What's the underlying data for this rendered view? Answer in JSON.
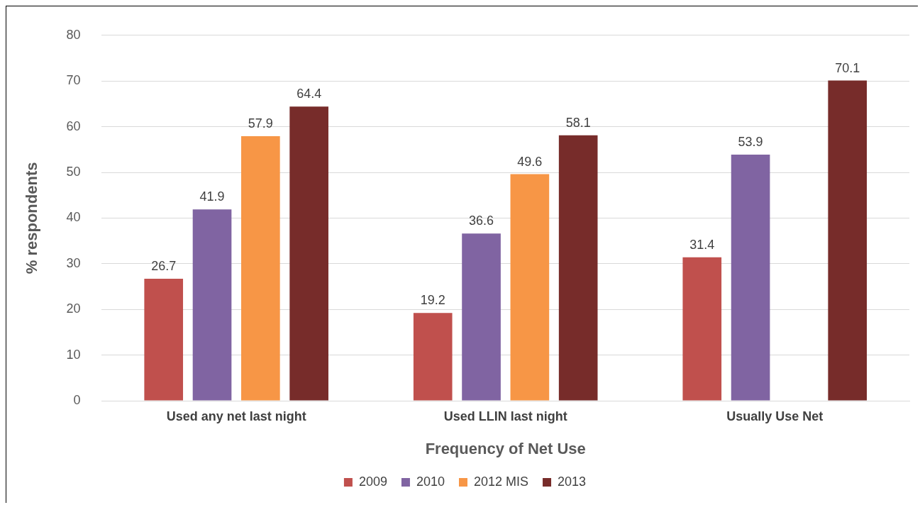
{
  "chart_data": {
    "type": "bar",
    "xlabel": "Frequency of Net Use",
    "ylabel": "% respondents",
    "categories": [
      "Used any net last night",
      "Used LLIN last night",
      "Usually Use Net"
    ],
    "series": [
      {
        "name": "2009",
        "color": "#c0504d",
        "values": [
          26.7,
          19.2,
          31.4
        ]
      },
      {
        "name": "2010",
        "color": "#8064a2",
        "values": [
          41.9,
          36.6,
          53.9
        ]
      },
      {
        "name": "2012 MIS",
        "color": "#f79646",
        "values": [
          57.9,
          49.6,
          null
        ]
      },
      {
        "name": "2013",
        "color": "#772c2a",
        "values": [
          64.4,
          58.1,
          70.1
        ]
      }
    ],
    "ylim": [
      0,
      80
    ],
    "yticks": [
      0,
      10,
      20,
      30,
      40,
      50,
      60,
      70,
      80
    ],
    "grid": "y",
    "legend": "bottom",
    "data_labels": true
  }
}
